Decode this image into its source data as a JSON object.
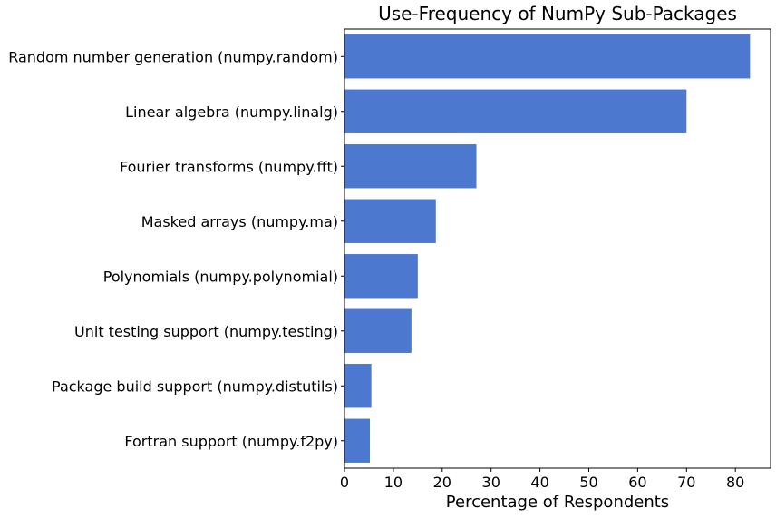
{
  "chart_data": {
    "type": "bar",
    "orientation": "horizontal",
    "title": "Use-Frequency of NumPy Sub-Packages",
    "xlabel": "Percentage of Respondents",
    "ylabel": "",
    "categories": [
      "Random number generation (numpy.random)",
      "Linear algebra (numpy.linalg)",
      "Fourier transforms (numpy.fft)",
      "Masked arrays (numpy.ma)",
      "Polynomials (numpy.polynomial)",
      "Unit testing support (numpy.testing)",
      "Package build support (numpy.distutils)",
      "Fortran support (numpy.f2py)"
    ],
    "values": [
      83,
      70,
      27,
      18.7,
      15,
      13.7,
      5.5,
      5.2
    ],
    "xlim": [
      0,
      87.2
    ],
    "xticks": [
      "0",
      "10",
      "20",
      "30",
      "40",
      "50",
      "60",
      "70",
      "80"
    ],
    "bar_color": "#4c78cf",
    "grid": false,
    "legend": "none"
  }
}
